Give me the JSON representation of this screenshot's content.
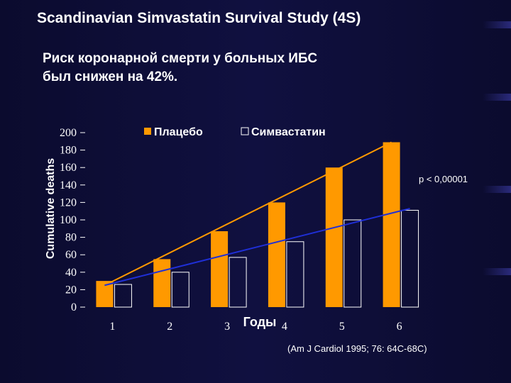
{
  "slide": {
    "title": "Scandinavian Simvastatin Survival Study (4S)",
    "subtitle_line1": "Риск коронарной смерти у больных ИБС",
    "subtitle_line2": "был снижен на 42%.",
    "citation": "(Am J Cardiol 1995; 76: 64C-68C)"
  },
  "colors": {
    "placebo": "#ff9900",
    "simvastatin": "#ffffff",
    "placebo_line": "#ff9900",
    "simvastatin_line": "#1f2fd6"
  },
  "chart_data": {
    "type": "bar",
    "categories": [
      "1",
      "2",
      "3",
      "4",
      "5",
      "6"
    ],
    "series": [
      {
        "name": "Плацебо",
        "values": [
          30,
          55,
          87,
          120,
          160,
          189
        ]
      },
      {
        "name": "Симвастатин",
        "values": [
          26,
          40,
          57,
          75,
          100,
          111
        ]
      }
    ],
    "trend_lines": [
      {
        "series": "Плацебо",
        "from": 25,
        "to": 189
      },
      {
        "series": "Симвастатин",
        "from": 25,
        "to": 113
      }
    ],
    "yticks": [
      0,
      20,
      40,
      60,
      80,
      100,
      120,
      140,
      160,
      180,
      200
    ],
    "ylim": [
      0,
      200
    ],
    "ylabel": "Cumulative deaths",
    "xlabel": "Годы",
    "annotation": "p < 0,00001",
    "legend_position": "top"
  }
}
